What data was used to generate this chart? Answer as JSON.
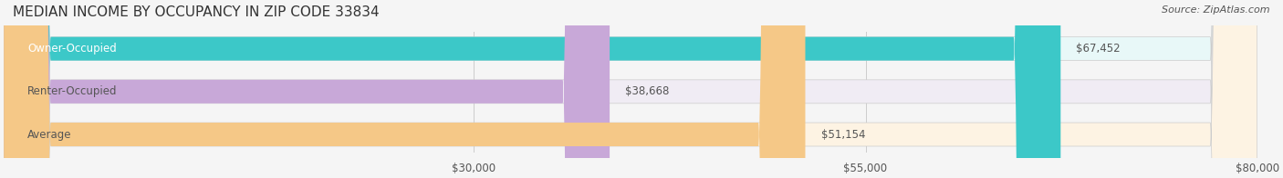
{
  "title": "MEDIAN INCOME BY OCCUPANCY IN ZIP CODE 33834",
  "source": "Source: ZipAtlas.com",
  "categories": [
    "Owner-Occupied",
    "Renter-Occupied",
    "Average"
  ],
  "values": [
    67452,
    38668,
    51154
  ],
  "bar_colors": [
    "#3cc8c8",
    "#c8a8d8",
    "#f5c887"
  ],
  "bar_bg_colors": [
    "#e8f8f8",
    "#f0ecf4",
    "#fdf3e3"
  ],
  "value_labels": [
    "$67,452",
    "$38,668",
    "$51,154"
  ],
  "xlim": [
    0,
    80000
  ],
  "xticks": [
    30000,
    55000,
    80000
  ],
  "xtick_labels": [
    "$30,000",
    "$55,000",
    "$80,000"
  ],
  "title_fontsize": 11,
  "label_fontsize": 8.5,
  "value_fontsize": 8.5,
  "source_fontsize": 8,
  "bar_height": 0.55,
  "background_color": "#f5f5f5",
  "bar_bg_alpha": 1.0,
  "text_color": "#555555",
  "title_color": "#333333"
}
